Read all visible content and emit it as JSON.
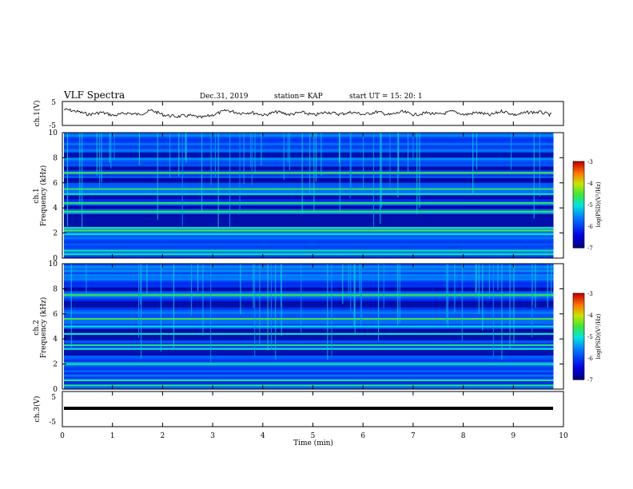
{
  "header": {
    "title": "VLF Spectra",
    "date": "Dec.31, 2019",
    "station": "station= KAP",
    "start": "start  UT =  15: 20: 1"
  },
  "chart_data": [
    {
      "type": "line",
      "name": "ch1-waveform",
      "ylabel": "ch.1(V)",
      "ylim": [
        -5,
        5
      ],
      "yticks": [
        "5",
        "-5"
      ],
      "xlim": [
        0,
        10
      ],
      "x_unit": "min",
      "x": [
        0,
        0.25,
        0.5,
        0.75,
        1.0,
        1.25,
        1.5,
        1.75,
        2.0,
        2.25,
        2.5,
        2.75,
        3.0,
        3.25,
        3.5,
        3.75,
        4.0,
        4.25,
        4.5,
        4.75,
        5.0,
        5.25,
        5.5,
        5.75,
        6.0,
        6.25,
        6.5,
        6.75,
        7.0,
        7.25,
        7.5,
        7.75,
        8.0,
        8.25,
        8.5,
        8.75,
        9.0,
        9.25,
        9.5,
        9.75
      ],
      "values": [
        2.0,
        1.0,
        -0.5,
        0.5,
        -1.0,
        0.2,
        -0.5,
        1.5,
        -0.8,
        -1.5,
        -1.0,
        -2.0,
        -0.5,
        1.5,
        0.2,
        0.5,
        -0.8,
        0.8,
        -0.5,
        0.5,
        -0.8,
        0.7,
        -0.4,
        0.6,
        -0.5,
        0.8,
        -0.7,
        0.8,
        -0.6,
        0.3,
        -0.5,
        1.0,
        -0.6,
        0.5,
        -0.8,
        1.2,
        -0.7,
        0.5,
        0.6,
        -0.8
      ]
    },
    {
      "type": "heatmap",
      "name": "ch1-spectrogram",
      "ylabel": "ch.1\nFrequency  (kHz)",
      "ylim": [
        0,
        10
      ],
      "yticks": [
        "0",
        "2",
        "4",
        "6",
        "8",
        "10"
      ],
      "xlim": [
        0,
        10
      ],
      "colorbar": {
        "label": "log(PSD)(V²/Hz)",
        "range": [
          -7,
          -3
        ],
        "ticks": [
          "-3",
          "-4",
          "-5",
          "-6",
          "-7"
        ]
      },
      "background_level": -5.8,
      "dark_bands_khz": [
        [
          2.5,
          3.5
        ],
        [
          3.9,
          4.2
        ],
        [
          4.7,
          5.0
        ],
        [
          6.0,
          6.4
        ],
        [
          7.0,
          7.3
        ],
        [
          8.0,
          8.4
        ]
      ],
      "bright_lines_khz": [
        0.3,
        0.6,
        1.9,
        2.2,
        2.4,
        3.7,
        4.4,
        5.1,
        5.5,
        6.8
      ]
    },
    {
      "type": "heatmap",
      "name": "ch2-spectrogram",
      "ylabel": "ch.2\nFrequency  (kHz)",
      "ylim": [
        0,
        10
      ],
      "yticks": [
        "0",
        "2",
        "4",
        "6",
        "8",
        "10"
      ],
      "xlim": [
        0,
        10
      ],
      "colorbar": {
        "label": "log(PSD)(V²/Hz)",
        "range": [
          -7,
          -3
        ],
        "ticks": [
          "-3",
          "-4",
          "-5",
          "-6",
          "-7"
        ]
      },
      "background_level": -5.8,
      "dark_bands_khz": [
        [
          2.7,
          3.2
        ],
        [
          3.9,
          4.3
        ],
        [
          4.5,
          4.8
        ],
        [
          6.5,
          7.0
        ],
        [
          7.8,
          8.1
        ]
      ],
      "bright_lines_khz": [
        0.3,
        0.7,
        2.0,
        3.2,
        3.5,
        4.4,
        5.0,
        5.6,
        7.5
      ]
    },
    {
      "type": "line",
      "name": "ch3-waveform",
      "ylabel": "ch.3(V)",
      "ylim": [
        -5,
        5
      ],
      "yticks": [
        "5",
        "-5"
      ],
      "xlim": [
        0,
        10
      ],
      "x": [
        0,
        9.8
      ],
      "values": [
        0,
        0
      ]
    }
  ],
  "xaxis": {
    "label": "Time  (min)",
    "ticks": [
      "0",
      "1",
      "2",
      "3",
      "4",
      "5",
      "6",
      "7",
      "8",
      "9",
      "10"
    ]
  }
}
